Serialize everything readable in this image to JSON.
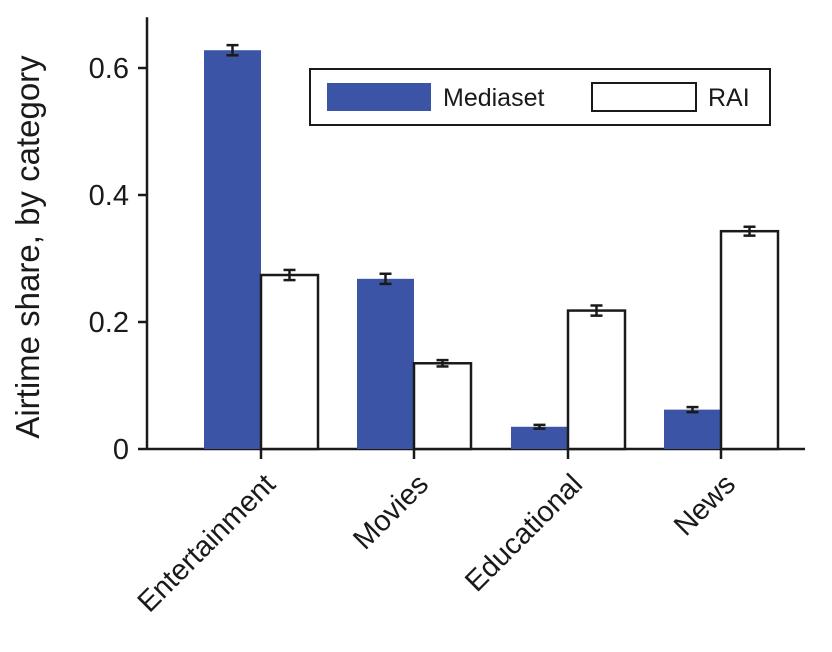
{
  "chart_data": {
    "type": "bar",
    "title": "",
    "xlabel": "",
    "ylabel": "Airtime share, by category",
    "ylim": [
      0,
      0.68
    ],
    "yticks": [
      0,
      0.2,
      0.4,
      0.6
    ],
    "ytick_labels": [
      "0",
      "0.2",
      "0.4",
      "0.6"
    ],
    "grid": false,
    "legend_position": "top-right",
    "categories": [
      "Entertainment",
      "Movies",
      "Educational",
      "News"
    ],
    "series": [
      {
        "name": "Mediaset",
        "color": "#3b54a5",
        "values": [
          0.628,
          0.268,
          0.035,
          0.062
        ],
        "errors": [
          0.008,
          0.008,
          0.003,
          0.004
        ]
      },
      {
        "name": "RAI",
        "color": "#ffffff",
        "values": [
          0.274,
          0.135,
          0.218,
          0.343
        ],
        "errors": [
          0.008,
          0.005,
          0.008,
          0.007
        ]
      }
    ]
  }
}
